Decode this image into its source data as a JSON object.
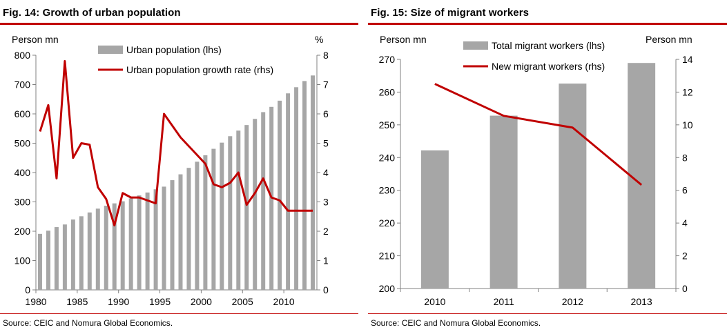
{
  "colors": {
    "accent": "#c00000",
    "bar": "#a6a6a6",
    "line": "#c00000",
    "axis": "#808080"
  },
  "figures": [
    {
      "title": "Fig. 14: Growth of urban population",
      "source": "Source: CEIC and Nomura Global Economics."
    },
    {
      "title": "Fig. 15: Size of migrant workers",
      "source": "Source: CEIC and Nomura Global Economics."
    }
  ],
  "chart_data": [
    {
      "type": "bar",
      "title": "Fig. 14: Growth of urban population",
      "ylabel_left": "Person mn",
      "ylabel_right": "%",
      "ylim_left": [
        0,
        800
      ],
      "ylim_right": [
        0,
        8
      ],
      "yticks_left": [
        "0",
        "100",
        "200",
        "300",
        "400",
        "500",
        "600",
        "700",
        "800"
      ],
      "yticks_right": [
        "0",
        "1",
        "2",
        "3",
        "4",
        "5",
        "6",
        "7",
        "8"
      ],
      "x_tick_labels": [
        "1980",
        "1985",
        "1990",
        "1995",
        "2000",
        "2005",
        "2010"
      ],
      "legend": [
        "Urban population (lhs)",
        "Urban population growth rate (rhs)"
      ],
      "x": [
        1980,
        1981,
        1982,
        1983,
        1984,
        1985,
        1986,
        1987,
        1988,
        1989,
        1990,
        1991,
        1992,
        1993,
        1994,
        1995,
        1996,
        1997,
        1998,
        1999,
        2000,
        2001,
        2002,
        2003,
        2004,
        2005,
        2006,
        2007,
        2008,
        2009,
        2010,
        2011,
        2012,
        2013
      ],
      "series": [
        {
          "name": "Urban population (lhs)",
          "type": "bar",
          "axis": "left",
          "values": [
            191,
            202,
            214,
            223,
            240,
            251,
            264,
            277,
            287,
            295,
            302,
            312,
            322,
            332,
            343,
            352,
            374,
            394,
            416,
            437,
            459,
            481,
            502,
            524,
            543,
            562,
            583,
            606,
            624,
            645,
            670,
            691,
            712,
            731
          ]
        },
        {
          "name": "Urban population growth rate (rhs)",
          "type": "line",
          "axis": "right",
          "values": [
            5.4,
            6.3,
            3.8,
            7.8,
            4.5,
            5.0,
            4.95,
            3.5,
            3.1,
            2.2,
            3.3,
            3.15,
            3.15,
            3.05,
            2.95,
            6.0,
            5.6,
            5.2,
            4.9,
            4.6,
            4.3,
            3.6,
            3.5,
            3.65,
            4.0,
            2.9,
            3.3,
            3.8,
            3.15,
            3.05,
            2.7,
            2.7,
            2.7,
            2.7
          ]
        }
      ]
    },
    {
      "type": "bar",
      "title": "Fig. 15: Size of migrant workers",
      "ylabel_left": "Person mn",
      "ylabel_right": "Person mn",
      "ylim_left": [
        200,
        270
      ],
      "ylim_right": [
        0,
        14
      ],
      "yticks_left": [
        "200",
        "210",
        "220",
        "230",
        "240",
        "250",
        "260",
        "270"
      ],
      "yticks_right": [
        "0",
        "2",
        "4",
        "6",
        "8",
        "10",
        "12",
        "14"
      ],
      "categories": [
        "2010",
        "2011",
        "2012",
        "2013"
      ],
      "legend": [
        "Total migrant workers (lhs)",
        "New migrant workers (rhs)"
      ],
      "series": [
        {
          "name": "Total migrant workers (lhs)",
          "type": "bar",
          "axis": "left",
          "values": [
            242.2,
            252.8,
            262.6,
            268.9
          ]
        },
        {
          "name": "New migrant workers (rhs)",
          "type": "line",
          "axis": "right",
          "values": [
            12.5,
            10.55,
            9.83,
            6.33
          ]
        }
      ]
    }
  ]
}
